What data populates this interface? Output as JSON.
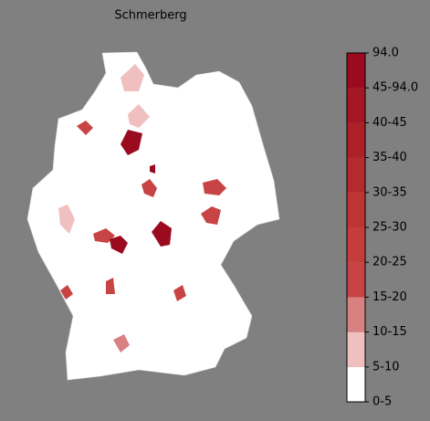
{
  "title": "Schmerberg",
  "colorbar": {
    "labels": [
      "0-5",
      "5-10",
      "10-15",
      "15-20",
      "20-25",
      "25-30",
      "30-35",
      "35-40",
      "40-45",
      "45-94.0",
      "94.0"
    ],
    "colors": [
      "#ffffff",
      "#f0c0c0",
      "#d98080",
      "#c84444",
      "#c43c3c",
      "#bd3434",
      "#b52a2e",
      "#ad2028",
      "#a41624",
      "#9b0b1f"
    ]
  }
}
